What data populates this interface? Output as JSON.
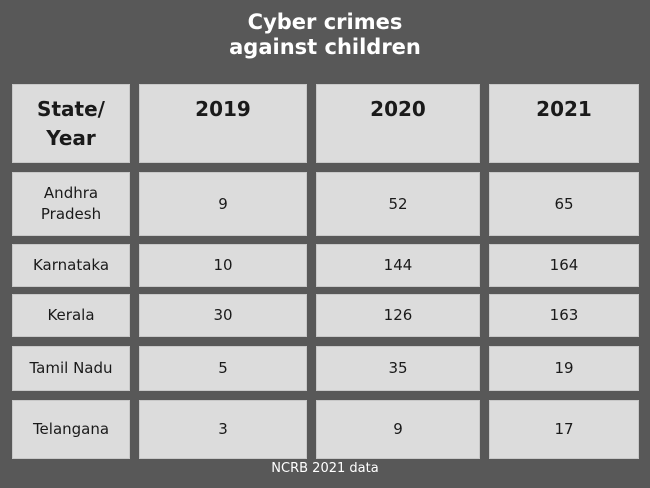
{
  "chart_data": {
    "type": "table",
    "title": "Cyber crimes against children",
    "title_lines": [
      "Cyber crimes",
      "against children"
    ],
    "header": [
      "State/ Year",
      "2019",
      "2020",
      "2021"
    ],
    "header_first_lines": [
      "State/",
      "Year"
    ],
    "rows": [
      {
        "state": "Andhra Pradesh",
        "state_lines": [
          "Andhra",
          "Pradesh"
        ],
        "values": [
          9,
          52,
          65
        ]
      },
      {
        "state": "Karnataka",
        "values": [
          10,
          144,
          164
        ]
      },
      {
        "state": "Kerala",
        "values": [
          30,
          126,
          163
        ]
      },
      {
        "state": "Tamil Nadu",
        "values": [
          5,
          35,
          19
        ]
      },
      {
        "state": "Telangana",
        "values": [
          3,
          9,
          17
        ]
      }
    ],
    "source": "NCRB 2021 data"
  },
  "colors": {
    "background": "#585858",
    "cell": "#dcdcdc",
    "text": "#1a1a1a",
    "title": "#ffffff"
  }
}
